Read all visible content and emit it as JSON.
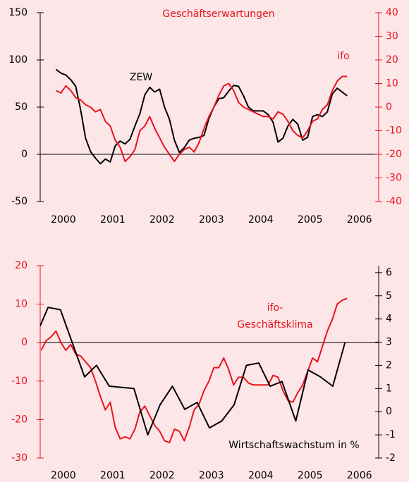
{
  "chart_data": [
    {
      "type": "line",
      "annotations": [
        {
          "text": "Geschäftserwartungen",
          "color": "#e8141c"
        },
        {
          "text": "ZEW",
          "color": "#000000"
        },
        {
          "text": "ifo",
          "color": "#e8141c"
        }
      ],
      "x": [
        2000.35,
        2000.45,
        2000.55,
        2000.65,
        2000.75,
        2000.85,
        2000.95,
        2001.05,
        2001.15,
        2001.25,
        2001.35,
        2001.45,
        2001.55,
        2001.65,
        2001.75,
        2001.85,
        2001.95,
        2002.05,
        2002.15,
        2002.25,
        2002.35,
        2002.45,
        2002.55,
        2002.65,
        2002.75,
        2002.85,
        2002.95,
        2003.05,
        2003.15,
        2003.25,
        2003.35,
        2003.45,
        2003.55,
        2003.65,
        2003.75,
        2003.85,
        2003.95,
        2004.05,
        2004.15,
        2004.25,
        2004.35,
        2004.45,
        2004.55,
        2004.65,
        2004.75,
        2004.85,
        2004.95,
        2005.05,
        2005.15,
        2005.25,
        2005.35,
        2005.45,
        2005.55,
        2005.65,
        2005.75,
        2005.85,
        2005.95,
        2006.05,
        2006.15,
        2006.25
      ],
      "series": [
        {
          "name": "ZEW",
          "color": "#000000",
          "axis": "y",
          "values": [
            90,
            86,
            84,
            79,
            72,
            47,
            17,
            3,
            -4,
            -10,
            -5,
            -8,
            9,
            14,
            11,
            16,
            30,
            43,
            63,
            71,
            66,
            69,
            50,
            37,
            15,
            2,
            7,
            15,
            17,
            18,
            20,
            38,
            50,
            59,
            60,
            67,
            73,
            72,
            62,
            50,
            46,
            46,
            46,
            42,
            34,
            13,
            17,
            30,
            37,
            32,
            15,
            18,
            40,
            42,
            40,
            45,
            64,
            70,
            66,
            62
          ]
        },
        {
          "name": "ifo",
          "color": "#e8141c",
          "axis": "y2",
          "values": [
            7,
            6,
            9,
            7,
            4,
            3,
            1,
            0,
            -2,
            -1,
            -6,
            -8,
            -14,
            -17,
            -23,
            -21,
            -18,
            -10,
            -8,
            -4,
            -9,
            -13,
            -17,
            -20,
            -23,
            -20,
            -18,
            -17,
            -19,
            -15,
            -9,
            -4,
            0,
            5,
            9,
            10,
            7,
            2,
            0,
            -1,
            -2,
            -3,
            -4,
            -4,
            -5,
            -2,
            -3,
            -6,
            -10,
            -12,
            -13,
            -10,
            -6,
            -5,
            -1,
            1,
            7,
            11,
            13,
            13
          ]
        }
      ],
      "xlim": [
        2000.03,
        2006.89
      ],
      "xticks": [
        {
          "value": 2000.5,
          "label": "2000"
        },
        {
          "value": 2001.5,
          "label": "2001"
        },
        {
          "value": 2002.5,
          "label": "2002"
        },
        {
          "value": 2003.5,
          "label": "2003"
        },
        {
          "value": 2004.5,
          "label": "2004"
        },
        {
          "value": 2005.5,
          "label": "2005"
        },
        {
          "value": 2006.5,
          "label": "2006"
        }
      ],
      "ylim": [
        -50,
        150
      ],
      "yticks": [
        150,
        100,
        50,
        0,
        -50
      ],
      "yaxis_color": "#000000",
      "y2lim": [
        -40,
        40
      ],
      "y2ticks": [
        40,
        30,
        20,
        10,
        0,
        -10,
        -20,
        -30,
        -40
      ],
      "y2axis_color": "#e8141c"
    },
    {
      "type": "line",
      "annotations": [
        {
          "text": [
            "ifo-",
            "Geschäftsklima"
          ],
          "color": "#e8141c"
        },
        {
          "text": "Wirtschaftswachstum in %",
          "color": "#000000"
        }
      ],
      "series": [
        {
          "name": "ifo-Geschäftsklima",
          "color": "#e8141c",
          "axis": "y",
          "x": [
            2000.05,
            2000.15,
            2000.25,
            2000.35,
            2000.45,
            2000.55,
            2000.65,
            2000.75,
            2000.85,
            2000.95,
            2001.05,
            2001.15,
            2001.25,
            2001.35,
            2001.45,
            2001.55,
            2001.65,
            2001.75,
            2001.85,
            2001.95,
            2002.05,
            2002.15,
            2002.25,
            2002.35,
            2002.45,
            2002.55,
            2002.65,
            2002.75,
            2002.85,
            2002.95,
            2003.05,
            2003.15,
            2003.25,
            2003.35,
            2003.45,
            2003.55,
            2003.65,
            2003.75,
            2003.85,
            2003.95,
            2004.05,
            2004.15,
            2004.25,
            2004.35,
            2004.45,
            2004.55,
            2004.65,
            2004.75,
            2004.85,
            2004.95,
            2005.05,
            2005.15,
            2005.25,
            2005.35,
            2005.45,
            2005.55,
            2005.65,
            2005.75,
            2005.85,
            2005.95,
            2006.05,
            2006.15,
            2006.25
          ],
          "values": [
            -2,
            0.5,
            1.5,
            3,
            0,
            -2,
            -0.5,
            -3,
            -3.5,
            -5,
            -6.5,
            -10,
            -14,
            -17.5,
            -15.5,
            -22,
            -25,
            -24.5,
            -25,
            -22.5,
            -18,
            -16.5,
            -19,
            -21.5,
            -23,
            -25.5,
            -26,
            -22.5,
            -23,
            -25.5,
            -22,
            -17.5,
            -16,
            -12.5,
            -10,
            -6.5,
            -6.5,
            -4,
            -7,
            -11,
            -9,
            -9,
            -10.5,
            -11,
            -11,
            -11,
            -11,
            -8.5,
            -9,
            -12.5,
            -15,
            -15.5,
            -13,
            -11,
            -7.5,
            -4,
            -5,
            -1,
            3,
            6,
            10,
            11,
            11.5
          ]
        },
        {
          "name": "Wirtschaftswachstum in %",
          "color": "#000000",
          "axis": "y2",
          "x": [
            2000.03,
            2000.19,
            2000.44,
            2000.93,
            2001.17,
            2001.43,
            2001.93,
            2002.21,
            2002.46,
            2002.71,
            2002.96,
            2003.21,
            2003.46,
            2003.71,
            2003.96,
            2004.21,
            2004.46,
            2004.69,
            2004.93,
            2005.21,
            2005.46,
            2005.71,
            2005.96,
            2006.21
          ],
          "values": [
            3.7,
            4.5,
            4.4,
            1.5,
            2.0,
            1.1,
            1.0,
            -1.0,
            0.3,
            1.1,
            0.1,
            0.4,
            -0.7,
            -0.4,
            0.3,
            2.0,
            2.1,
            1.1,
            1.3,
            -0.4,
            1.8,
            1.5,
            1.1,
            3.0
          ]
        }
      ],
      "xlim": [
        2000.03,
        2006.89
      ],
      "xticks": [
        {
          "value": 2000.5,
          "label": "2000"
        },
        {
          "value": 2001.5,
          "label": "2001"
        },
        {
          "value": 2002.5,
          "label": "2002"
        },
        {
          "value": 2003.5,
          "label": "2003"
        },
        {
          "value": 2004.5,
          "label": "2004"
        },
        {
          "value": 2005.5,
          "label": "2005"
        },
        {
          "value": 2006.5,
          "label": "2006"
        }
      ],
      "ylim": [
        -30,
        20
      ],
      "yticks": [
        20,
        10,
        0,
        -10,
        -20,
        -30
      ],
      "yaxis_color": "#e8141c",
      "y2lim": [
        -2,
        6.3
      ],
      "y2ticks": [
        6,
        5,
        4,
        3,
        2,
        1,
        0,
        -1,
        -2
      ],
      "y2axis_color": "#000000"
    }
  ]
}
